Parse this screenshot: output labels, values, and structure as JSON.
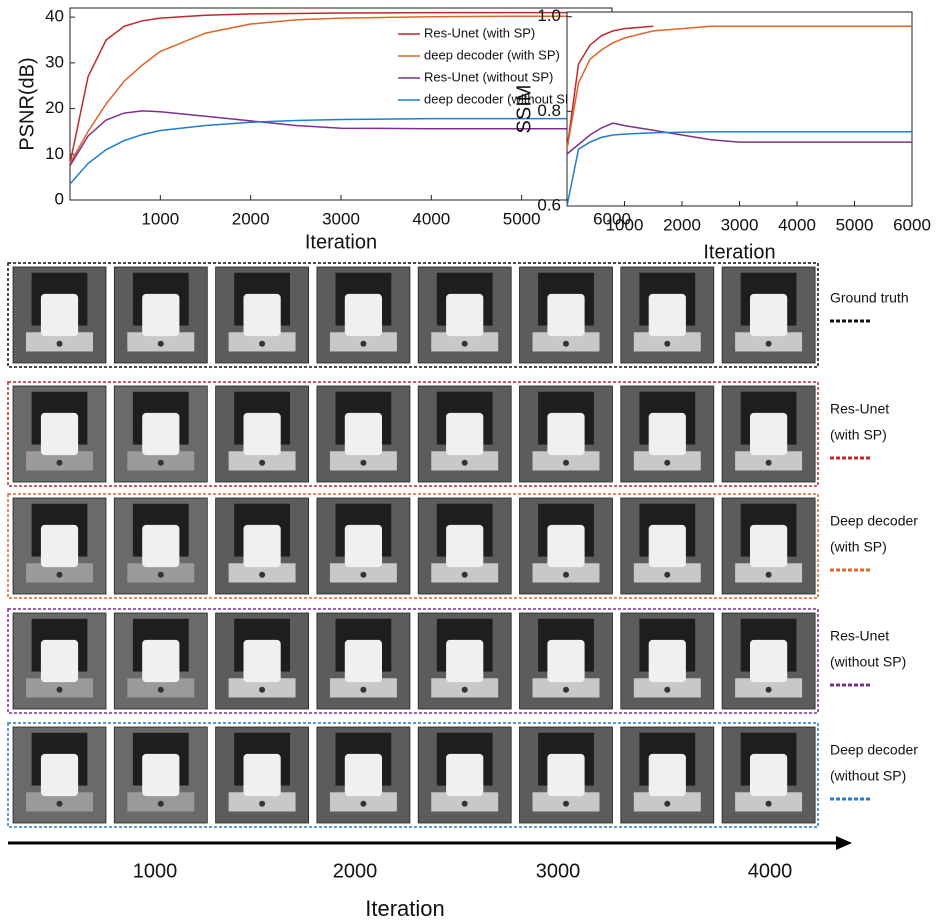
{
  "chart_data": [
    {
      "type": "line",
      "ylabel": "PSNR(dB)",
      "xlabel": "Iteration",
      "x": [
        0,
        200,
        400,
        600,
        800,
        1000,
        1500,
        2000,
        2500,
        3000,
        4000,
        5000,
        6000
      ],
      "xlim": [
        0,
        6000
      ],
      "xticks": [
        1000,
        2000,
        3000,
        4000,
        5000,
        6000
      ],
      "ylim": [
        0,
        42
      ],
      "yticks": [
        0,
        10,
        20,
        30,
        40
      ],
      "legend": "upper right",
      "series": [
        {
          "name": "Res-Unet (with SP)",
          "color": "#c0282d",
          "values": [
            8,
            27,
            35,
            38,
            39.2,
            39.8,
            40.4,
            40.7,
            40.8,
            40.9,
            41,
            41,
            41
          ]
        },
        {
          "name": "deep decoder (with SP)",
          "color": "#e0632a",
          "values": [
            8,
            15,
            21,
            26,
            29.5,
            32.5,
            36.5,
            38.5,
            39.4,
            39.8,
            40.1,
            40.2,
            40.2
          ]
        },
        {
          "name": "Res-Unet (without SP)",
          "color": "#7e2f8e",
          "values": [
            7.5,
            14,
            17.5,
            19,
            19.5,
            19.3,
            18.3,
            17.3,
            16.3,
            15.7,
            15.6,
            15.6,
            15.6
          ]
        },
        {
          "name": "deep decoder (without SP)",
          "color": "#1f7ccf",
          "values": [
            3.5,
            8,
            11,
            13,
            14.3,
            15.2,
            16.3,
            17,
            17.4,
            17.6,
            17.8,
            17.8,
            17.8
          ]
        }
      ]
    },
    {
      "type": "line",
      "ylabel": "SSIM",
      "xlabel": "Iteration",
      "x": [
        0,
        200,
        400,
        600,
        800,
        1000,
        1500,
        2000,
        2500,
        3000,
        4000,
        5000,
        6000
      ],
      "xlim": [
        0,
        6000
      ],
      "xticks": [
        1000,
        2000,
        3000,
        4000,
        5000,
        6000
      ],
      "ylim": [
        0.6,
        1.01
      ],
      "yticks": [
        0.6,
        0.8,
        {
          "value": 1,
          "label": "1.0"
        }
      ],
      "series": [
        {
          "color": "#c0282d",
          "values": [
            0.72,
            0.9,
            0.94,
            0.96,
            0.97,
            0.975,
            0.98,
            null,
            null,
            null,
            null,
            null,
            null
          ]
        },
        {
          "color": "#e0632a",
          "values": [
            0.72,
            0.86,
            0.91,
            0.93,
            0.945,
            0.955,
            0.97,
            0.975,
            0.98,
            0.98,
            0.98,
            0.98,
            0.98
          ]
        },
        {
          "color": "#7e2f8e",
          "values": [
            0.71,
            0.73,
            0.75,
            0.765,
            0.775,
            0.77,
            0.76,
            0.75,
            0.74,
            0.735,
            0.735,
            0.735,
            0.735
          ]
        },
        {
          "color": "#1f7ccf",
          "values": [
            0.6,
            0.72,
            0.735,
            0.745,
            0.75,
            0.752,
            0.755,
            0.756,
            0.757,
            0.757,
            0.757,
            0.757,
            0.757
          ]
        }
      ]
    }
  ],
  "image_grid": {
    "rows": [
      {
        "label": [
          "Ground truth"
        ],
        "color": "#111111"
      },
      {
        "label": [
          "Res-Unet",
          "(with SP)"
        ],
        "color": "#c0282d"
      },
      {
        "label": [
          "Deep decoder",
          "(with SP)"
        ],
        "color": "#e0632a"
      },
      {
        "label": [
          "Res-Unet",
          "(without SP)"
        ],
        "color": "#7e2f8e"
      },
      {
        "label": [
          "Deep decoder",
          "(without SP)"
        ],
        "color": "#1f7ccf"
      }
    ],
    "xticks": [
      1000,
      2000,
      3000,
      4000
    ],
    "xlabel": "Iteration"
  }
}
